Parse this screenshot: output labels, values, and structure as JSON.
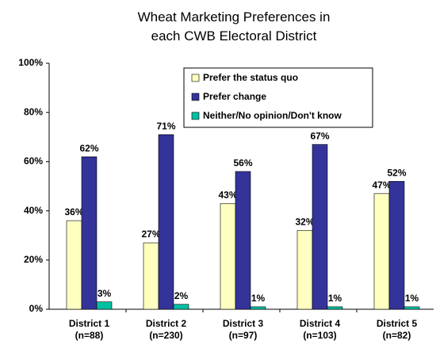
{
  "chart_data": {
    "type": "bar",
    "title": "Wheat Marketing Preferences in\neach CWB Electoral District",
    "categories": [
      "District 1\n(n=88)",
      "District 2\n(n=230)",
      "District 3\n(n=97)",
      "District 4\n(n=103)",
      "District 5\n(n=82)"
    ],
    "series": [
      {
        "name": "Prefer the status quo",
        "color": "#ffffc0",
        "values": [
          36,
          27,
          43,
          32,
          47
        ],
        "value_labels": [
          "36%",
          "27%",
          "43%",
          "32%",
          "47%"
        ]
      },
      {
        "name": "Prefer change",
        "color": "#333399",
        "values": [
          62,
          71,
          56,
          67,
          52
        ],
        "value_labels": [
          "62%",
          "71%",
          "56%",
          "67%",
          "52%"
        ]
      },
      {
        "name": "Neither/No opinion/Don't know",
        "color": "#00c0a0",
        "values": [
          3,
          2,
          1,
          1,
          1
        ],
        "value_labels": [
          "3%",
          "2%",
          "1%",
          "1%",
          "1%"
        ]
      }
    ],
    "ylim": [
      0,
      100
    ],
    "yticks": [
      {
        "value": 0,
        "label": "0%"
      },
      {
        "value": 20,
        "label": "20%"
      },
      {
        "value": 40,
        "label": "40%"
      },
      {
        "value": 60,
        "label": "60%"
      },
      {
        "value": 80,
        "label": "80%"
      },
      {
        "value": 100,
        "label": "100%"
      }
    ],
    "grid": false,
    "legend": "top-right"
  }
}
